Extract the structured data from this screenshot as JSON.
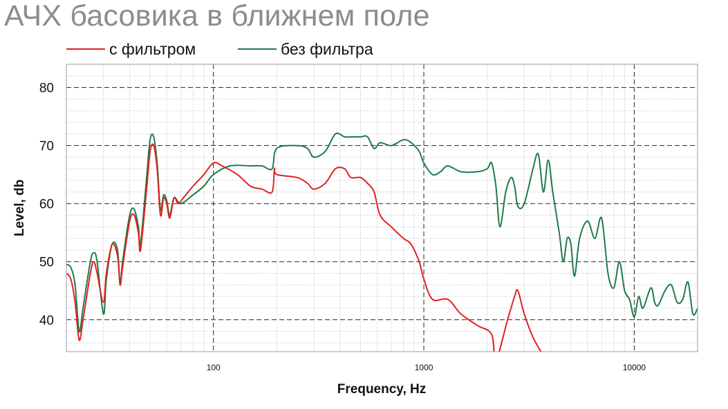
{
  "chart_data": {
    "type": "line",
    "title": "АЧХ басовика в ближнем поле",
    "xlabel": "Frequency, Hz",
    "ylabel": "Level, db",
    "x_scale": "log",
    "xlim": [
      20,
      20000
    ],
    "ylim": [
      34.5,
      84
    ],
    "x_ticks": [
      100,
      1000,
      10000
    ],
    "x_tick_labels": [
      "100",
      "1000",
      "10000"
    ],
    "y_ticks": [
      40,
      50,
      60,
      70,
      80
    ],
    "y_tick_labels": [
      "40",
      "50",
      "60",
      "70",
      "80"
    ],
    "grid": true,
    "legend_position": "top-left",
    "series": [
      {
        "name": "с фильтром",
        "color": "#e02020",
        "points": [
          [
            20,
            48
          ],
          [
            21,
            47
          ],
          [
            22,
            43
          ],
          [
            23,
            36.5
          ],
          [
            24,
            40
          ],
          [
            26,
            48
          ],
          [
            27,
            50
          ],
          [
            28,
            48
          ],
          [
            30,
            43
          ],
          [
            31,
            48
          ],
          [
            33,
            53
          ],
          [
            35,
            51
          ],
          [
            36,
            46
          ],
          [
            37,
            49
          ],
          [
            40,
            57
          ],
          [
            42,
            58
          ],
          [
            44,
            55
          ],
          [
            45,
            52
          ],
          [
            48,
            62
          ],
          [
            50,
            69
          ],
          [
            52,
            70
          ],
          [
            54,
            66
          ],
          [
            56,
            58
          ],
          [
            58,
            61
          ],
          [
            60,
            60
          ],
          [
            62,
            57.5
          ],
          [
            65,
            61
          ],
          [
            68,
            60
          ],
          [
            72,
            61
          ],
          [
            80,
            63
          ],
          [
            90,
            65
          ],
          [
            100,
            67
          ],
          [
            110,
            66.5
          ],
          [
            130,
            65
          ],
          [
            150,
            63
          ],
          [
            170,
            62.5
          ],
          [
            190,
            62
          ],
          [
            195,
            66
          ],
          [
            200,
            65
          ],
          [
            250,
            64.5
          ],
          [
            280,
            63.5
          ],
          [
            300,
            62.5
          ],
          [
            340,
            63.5
          ],
          [
            380,
            66
          ],
          [
            420,
            66
          ],
          [
            450,
            64.5
          ],
          [
            500,
            64.5
          ],
          [
            540,
            63.5
          ],
          [
            580,
            62
          ],
          [
            620,
            58
          ],
          [
            700,
            56
          ],
          [
            800,
            54
          ],
          [
            870,
            53
          ],
          [
            950,
            50
          ],
          [
            1000,
            47
          ],
          [
            1100,
            43.5
          ],
          [
            1300,
            43.5
          ],
          [
            1500,
            41
          ],
          [
            1800,
            39
          ],
          [
            2100,
            37.5
          ],
          [
            2200,
            33
          ],
          [
            2500,
            40
          ],
          [
            2700,
            44
          ],
          [
            2800,
            45
          ],
          [
            3000,
            41
          ],
          [
            3300,
            37
          ],
          [
            3600,
            34.5
          ]
        ]
      },
      {
        "name": "без фильтра",
        "color": "#1f7a48",
        "points": [
          [
            20,
            49.5
          ],
          [
            21,
            49
          ],
          [
            22,
            46
          ],
          [
            23,
            38
          ],
          [
            24,
            42
          ],
          [
            26,
            50
          ],
          [
            27,
            51.5
          ],
          [
            28,
            50
          ],
          [
            30,
            41
          ],
          [
            31,
            47
          ],
          [
            33,
            53
          ],
          [
            35,
            52
          ],
          [
            36,
            46
          ],
          [
            37,
            50
          ],
          [
            40,
            58
          ],
          [
            42,
            59
          ],
          [
            44,
            56
          ],
          [
            45,
            53
          ],
          [
            48,
            64
          ],
          [
            50,
            71
          ],
          [
            52,
            71.5
          ],
          [
            54,
            67
          ],
          [
            56,
            59
          ],
          [
            58,
            61.5
          ],
          [
            60,
            60.5
          ],
          [
            62,
            58
          ],
          [
            65,
            61
          ],
          [
            70,
            60
          ],
          [
            80,
            61.5
          ],
          [
            90,
            63
          ],
          [
            100,
            65
          ],
          [
            120,
            66.5
          ],
          [
            150,
            66.5
          ],
          [
            170,
            66.5
          ],
          [
            190,
            66
          ],
          [
            200,
            69.5
          ],
          [
            250,
            70
          ],
          [
            280,
            69.5
          ],
          [
            300,
            68
          ],
          [
            340,
            69
          ],
          [
            380,
            72
          ],
          [
            420,
            71.5
          ],
          [
            450,
            71.5
          ],
          [
            500,
            71.5
          ],
          [
            540,
            71.5
          ],
          [
            580,
            69.5
          ],
          [
            620,
            70.5
          ],
          [
            700,
            70
          ],
          [
            800,
            71
          ],
          [
            870,
            70.5
          ],
          [
            950,
            69
          ],
          [
            1000,
            67
          ],
          [
            1100,
            65
          ],
          [
            1200,
            65.5
          ],
          [
            1300,
            66.5
          ],
          [
            1500,
            65.5
          ],
          [
            1800,
            65.5
          ],
          [
            2000,
            66
          ],
          [
            2100,
            67
          ],
          [
            2200,
            63
          ],
          [
            2300,
            56
          ],
          [
            2450,
            62
          ],
          [
            2600,
            64.5
          ],
          [
            2700,
            63
          ],
          [
            2800,
            59.5
          ],
          [
            3000,
            60
          ],
          [
            3300,
            66
          ],
          [
            3500,
            68.5
          ],
          [
            3700,
            62
          ],
          [
            3900,
            67.5
          ],
          [
            4100,
            62
          ],
          [
            4400,
            55
          ],
          [
            4600,
            50
          ],
          [
            4800,
            54
          ],
          [
            5000,
            53
          ],
          [
            5200,
            47.5
          ],
          [
            5500,
            54
          ],
          [
            6000,
            57
          ],
          [
            6500,
            54
          ],
          [
            7000,
            57.5
          ],
          [
            7500,
            48
          ],
          [
            8000,
            45.5
          ],
          [
            8500,
            50
          ],
          [
            9000,
            45
          ],
          [
            9500,
            43.5
          ],
          [
            10000,
            40.5
          ],
          [
            10500,
            44
          ],
          [
            11000,
            42
          ],
          [
            12000,
            45.5
          ],
          [
            12500,
            43
          ],
          [
            13000,
            42.5
          ],
          [
            14000,
            45
          ],
          [
            15000,
            46
          ],
          [
            16000,
            43
          ],
          [
            17000,
            43.5
          ],
          [
            18000,
            46.5
          ],
          [
            19000,
            41
          ],
          [
            20000,
            42
          ]
        ]
      }
    ]
  }
}
